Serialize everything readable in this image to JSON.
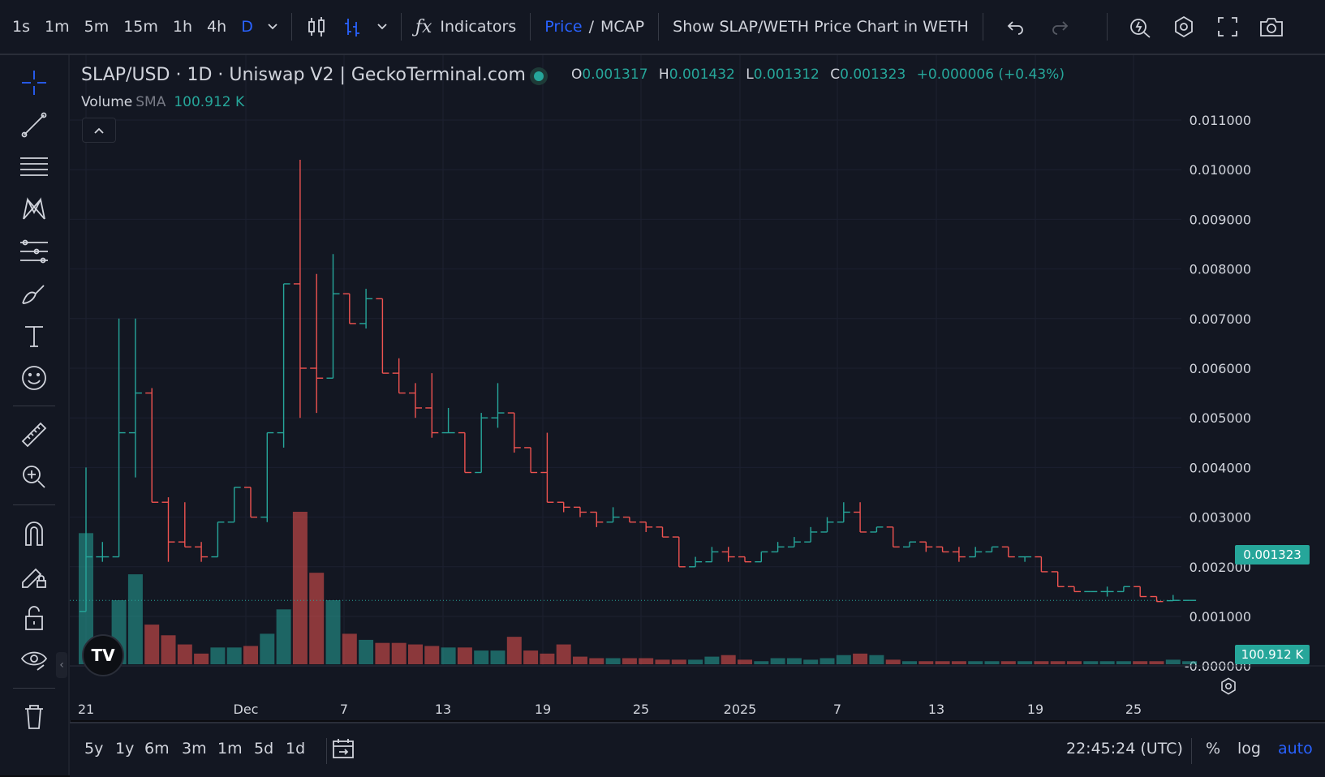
{
  "toolbar": {
    "intervals": [
      "1s",
      "1m",
      "5m",
      "15m",
      "1h",
      "4h",
      "D"
    ],
    "active_interval": "D",
    "indicators_label": "Indicators",
    "price_label": "Price",
    "slash": "/",
    "mcap_label": "MCAP",
    "weth_toggle_label": "Show SLAP/WETH Price Chart in WETH"
  },
  "legend": {
    "title": "SLAP/USD · 1D · Uniswap V2 | GeckoTerminal.com",
    "o_label": "O",
    "o_value": "0.001317",
    "h_label": "H",
    "h_value": "0.001432",
    "l_label": "L",
    "l_value": "0.001312",
    "c_label": "C",
    "c_value": "0.001323",
    "change": "+0.000006 (+0.43%)",
    "volume_label": "Volume",
    "sma_label": "SMA",
    "volume_value": "100.912 K"
  },
  "price_axis": {
    "ticks": [
      "0.011000",
      "0.010000",
      "0.009000",
      "0.008000",
      "0.007000",
      "0.006000",
      "0.005000",
      "0.004000",
      "0.003000",
      "0.002000",
      "0.001000",
      "-0.000000"
    ],
    "last_price_label": "0.001323",
    "volume_label": "100.912 K"
  },
  "time_axis": {
    "ticks": [
      "21",
      "Dec",
      "7",
      "13",
      "19",
      "25",
      "2025",
      "7",
      "13",
      "19",
      "25"
    ]
  },
  "bottombar": {
    "ranges": [
      "5y",
      "1y",
      "6m",
      "3m",
      "1m",
      "5d",
      "1d"
    ],
    "clock": "22:45:24 (UTC)",
    "percent_label": "%",
    "log_label": "log",
    "auto_label": "auto"
  },
  "colors": {
    "up": "#26a69a",
    "down": "#ef5350",
    "accent": "#2962ff",
    "background": "#131722"
  },
  "chart_data": {
    "type": "ohlc",
    "symbol": "SLAP/USD",
    "interval": "1D",
    "ylim": [
      -0.0003,
      0.0113
    ],
    "x_ticks": [
      "21",
      "Dec",
      "7",
      "13",
      "19",
      "25",
      "2025",
      "7",
      "13",
      "19",
      "25"
    ],
    "ohlc": [
      [
        0.0011,
        0.004,
        0.0011,
        0.0022
      ],
      [
        0.0022,
        0.0025,
        0.0021,
        0.0022
      ],
      [
        0.0022,
        0.007,
        0.0022,
        0.0047
      ],
      [
        0.0047,
        0.007,
        0.0038,
        0.0055
      ],
      [
        0.0055,
        0.0056,
        0.0033,
        0.0033
      ],
      [
        0.0033,
        0.0034,
        0.0021,
        0.0025
      ],
      [
        0.0025,
        0.0033,
        0.0024,
        0.0024
      ],
      [
        0.0024,
        0.0025,
        0.0021,
        0.0022
      ],
      [
        0.0022,
        0.0029,
        0.0022,
        0.0029
      ],
      [
        0.0029,
        0.0036,
        0.0029,
        0.0036
      ],
      [
        0.0036,
        0.0036,
        0.003,
        0.003
      ],
      [
        0.003,
        0.0047,
        0.0029,
        0.0047
      ],
      [
        0.0047,
        0.0077,
        0.0044,
        0.0077
      ],
      [
        0.0077,
        0.0102,
        0.005,
        0.006
      ],
      [
        0.006,
        0.0079,
        0.0051,
        0.0058
      ],
      [
        0.0058,
        0.0083,
        0.0058,
        0.0075
      ],
      [
        0.0075,
        0.0075,
        0.0069,
        0.0069
      ],
      [
        0.0069,
        0.0076,
        0.0068,
        0.0074
      ],
      [
        0.0074,
        0.0074,
        0.0059,
        0.0059
      ],
      [
        0.0059,
        0.0062,
        0.0055,
        0.0055
      ],
      [
        0.0055,
        0.0057,
        0.005,
        0.0052
      ],
      [
        0.0052,
        0.0059,
        0.0046,
        0.0047
      ],
      [
        0.0047,
        0.0052,
        0.0047,
        0.0047
      ],
      [
        0.0047,
        0.0047,
        0.0039,
        0.0039
      ],
      [
        0.0039,
        0.0051,
        0.0039,
        0.005
      ],
      [
        0.005,
        0.0057,
        0.0048,
        0.0051
      ],
      [
        0.0051,
        0.0051,
        0.0043,
        0.0044
      ],
      [
        0.0044,
        0.0044,
        0.0039,
        0.0039
      ],
      [
        0.0039,
        0.0047,
        0.0033,
        0.0033
      ],
      [
        0.0033,
        0.0033,
        0.0031,
        0.0032
      ],
      [
        0.0032,
        0.0032,
        0.003,
        0.0031
      ],
      [
        0.0031,
        0.0031,
        0.0028,
        0.0029
      ],
      [
        0.0029,
        0.0032,
        0.0029,
        0.003
      ],
      [
        0.003,
        0.003,
        0.0029,
        0.0029
      ],
      [
        0.0029,
        0.0029,
        0.0027,
        0.0028
      ],
      [
        0.0028,
        0.0028,
        0.0026,
        0.0026
      ],
      [
        0.0026,
        0.0026,
        0.002,
        0.002
      ],
      [
        0.002,
        0.0022,
        0.002,
        0.0021
      ],
      [
        0.0021,
        0.0024,
        0.0021,
        0.0023
      ],
      [
        0.0023,
        0.0024,
        0.0021,
        0.0022
      ],
      [
        0.0022,
        0.0022,
        0.0021,
        0.0021
      ],
      [
        0.0021,
        0.0023,
        0.0021,
        0.0023
      ],
      [
        0.0023,
        0.0025,
        0.0023,
        0.0024
      ],
      [
        0.0024,
        0.0026,
        0.0024,
        0.0025
      ],
      [
        0.0025,
        0.0028,
        0.0025,
        0.0027
      ],
      [
        0.0027,
        0.003,
        0.0027,
        0.0029
      ],
      [
        0.0029,
        0.0033,
        0.0029,
        0.0031
      ],
      [
        0.0031,
        0.0033,
        0.0027,
        0.0027
      ],
      [
        0.0027,
        0.0028,
        0.0027,
        0.0028
      ],
      [
        0.0028,
        0.0028,
        0.0024,
        0.0024
      ],
      [
        0.0024,
        0.0025,
        0.0024,
        0.0025
      ],
      [
        0.0025,
        0.0025,
        0.0023,
        0.0024
      ],
      [
        0.0024,
        0.0024,
        0.0023,
        0.0023
      ],
      [
        0.0023,
        0.0024,
        0.0021,
        0.0022
      ],
      [
        0.0022,
        0.0024,
        0.0022,
        0.0023
      ],
      [
        0.0023,
        0.0024,
        0.0023,
        0.0024
      ],
      [
        0.0024,
        0.0024,
        0.0022,
        0.0022
      ],
      [
        0.0022,
        0.0022,
        0.0021,
        0.0022
      ],
      [
        0.0022,
        0.0022,
        0.0019,
        0.0019
      ],
      [
        0.0019,
        0.0019,
        0.0016,
        0.0016
      ],
      [
        0.0016,
        0.0016,
        0.0015,
        0.0015
      ],
      [
        0.0015,
        0.0015,
        0.0015,
        0.0015
      ],
      [
        0.0015,
        0.0016,
        0.0014,
        0.0015
      ],
      [
        0.0015,
        0.0016,
        0.0015,
        0.0016
      ],
      [
        0.0016,
        0.0016,
        0.0014,
        0.0014
      ],
      [
        0.0014,
        0.0014,
        0.0013,
        0.0013
      ],
      [
        0.001317,
        0.001432,
        0.001312,
        0.001323
      ],
      [
        0.001323,
        0.001323,
        0.001323,
        0.001323
      ]
    ],
    "volume_relative": [
      0.86,
      0.12,
      0.42,
      0.59,
      0.26,
      0.19,
      0.13,
      0.07,
      0.11,
      0.11,
      0.12,
      0.2,
      0.36,
      1.0,
      0.6,
      0.42,
      0.2,
      0.16,
      0.14,
      0.14,
      0.13,
      0.12,
      0.11,
      0.11,
      0.09,
      0.09,
      0.18,
      0.09,
      0.07,
      0.13,
      0.05,
      0.04,
      0.04,
      0.04,
      0.04,
      0.03,
      0.03,
      0.03,
      0.05,
      0.06,
      0.03,
      0.02,
      0.04,
      0.04,
      0.03,
      0.04,
      0.06,
      0.07,
      0.06,
      0.03,
      0.02,
      0.02,
      0.02,
      0.02,
      0.02,
      0.02,
      0.02,
      0.02,
      0.02,
      0.02,
      0.02,
      0.02,
      0.02,
      0.02,
      0.02,
      0.02,
      0.03,
      0.02
    ]
  }
}
